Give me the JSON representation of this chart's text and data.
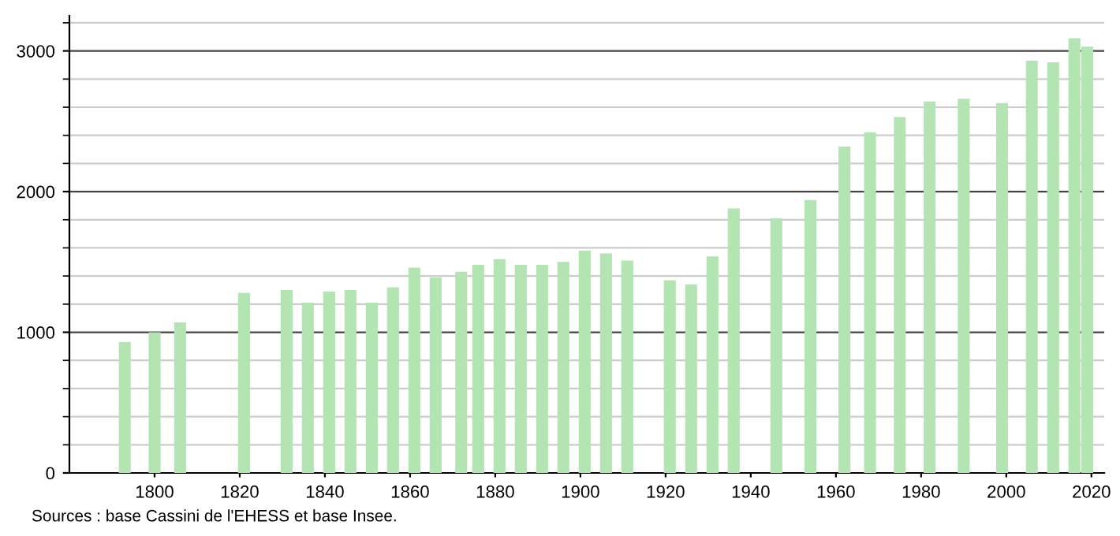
{
  "chart_data": {
    "type": "bar",
    "x": [
      1793,
      1800,
      1806,
      1821,
      1831,
      1836,
      1841,
      1846,
      1851,
      1856,
      1861,
      1866,
      1872,
      1876,
      1881,
      1886,
      1891,
      1896,
      1901,
      1906,
      1911,
      1921,
      1926,
      1931,
      1936,
      1946,
      1954,
      1962,
      1968,
      1975,
      1982,
      1990,
      1999,
      2006,
      2011,
      2016,
      2019
    ],
    "values": [
      930,
      1000,
      1070,
      1280,
      1300,
      1210,
      1290,
      1300,
      1210,
      1320,
      1460,
      1390,
      1430,
      1480,
      1520,
      1480,
      1480,
      1500,
      1580,
      1560,
      1510,
      1370,
      1340,
      1540,
      1880,
      1810,
      1940,
      2320,
      2420,
      2530,
      2640,
      2660,
      2630,
      2930,
      2920,
      3090,
      3030
    ],
    "color": "#b3e5b3",
    "xlim": [
      1780,
      2023
    ],
    "xticks": [
      1800,
      1820,
      1840,
      1860,
      1880,
      1900,
      1920,
      1940,
      1960,
      1980,
      2000,
      2020
    ],
    "ylim": [
      0,
      3250
    ],
    "yticks": [
      0,
      1000,
      2000,
      3000
    ],
    "grid": "y",
    "legend": false,
    "annotations": [
      "Sources : base Cassini de l'EHESS et base Insee."
    ]
  }
}
